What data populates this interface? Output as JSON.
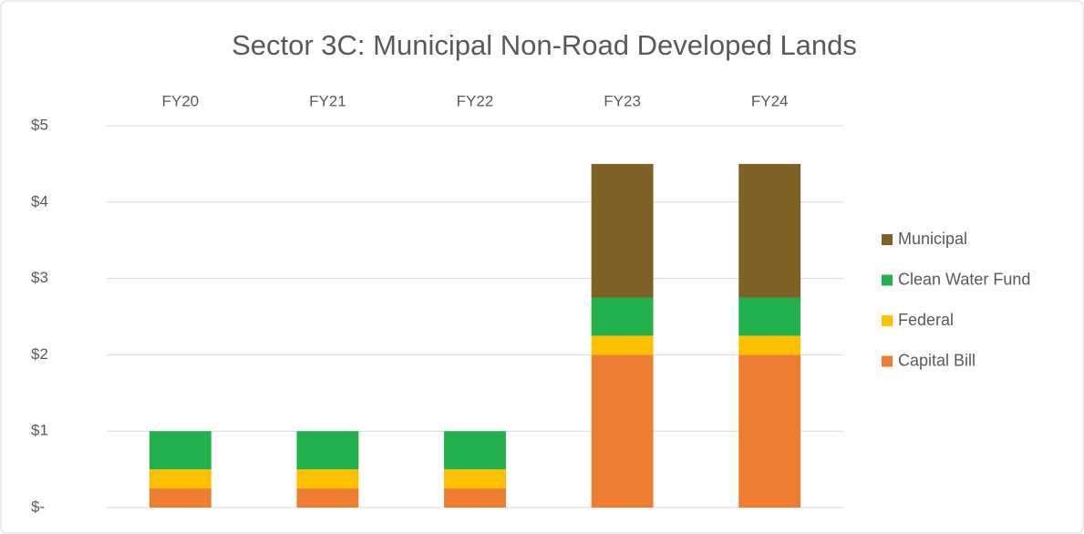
{
  "chart_data": {
    "type": "stacked_bar",
    "title": "Sector 3C: Municipal Non-Road Developed Lands",
    "categories": [
      "FY20",
      "FY21",
      "FY22",
      "FY23",
      "FY24"
    ],
    "series": [
      {
        "name": "Capital Bill",
        "color": "#ed7d31",
        "values": [
          0.25,
          0.25,
          0.25,
          2,
          2
        ]
      },
      {
        "name": "Federal",
        "color": "#ffc000",
        "values": [
          0.25,
          0.25,
          0.25,
          0.25,
          0.25
        ]
      },
      {
        "name": "Clean Water Fund",
        "color": "#22b14c",
        "values": [
          0.5,
          0.5,
          0.5,
          0.5,
          0.5
        ]
      },
      {
        "name": "Municipal",
        "color": "#7f6025",
        "values": [
          0,
          0,
          0,
          1.75,
          1.75
        ]
      }
    ],
    "ylim": [
      0,
      5
    ],
    "yticks": [
      {
        "value": 0,
        "label": "$-"
      },
      {
        "value": 1,
        "label": "$1"
      },
      {
        "value": 2,
        "label": "$2"
      },
      {
        "value": 3,
        "label": "$3"
      },
      {
        "value": 4,
        "label": "$4"
      },
      {
        "value": 5,
        "label": "$5"
      }
    ],
    "grid": true,
    "legend": "right"
  }
}
